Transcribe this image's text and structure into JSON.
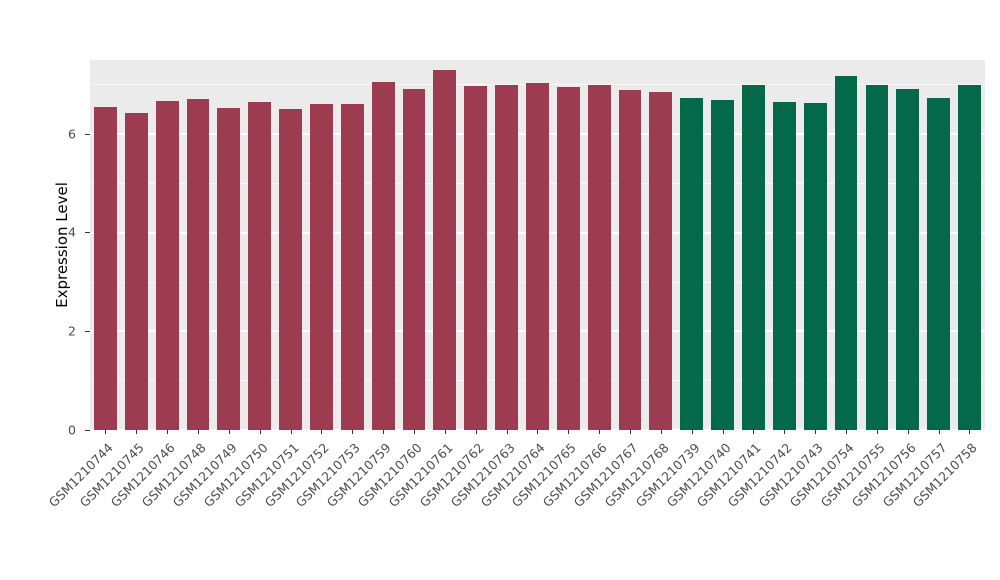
{
  "figure": {
    "background": "#FFFFFF"
  },
  "chart_data": {
    "type": "bar",
    "title": "",
    "xlabel": "",
    "ylabel": "Expression Level",
    "ylim": [
      0,
      7.5
    ],
    "yticks": [
      0,
      2,
      4,
      6
    ],
    "minor_gridlines": [
      1,
      3,
      5,
      7
    ],
    "grid": "on",
    "legend": "none",
    "panel_background": "#EBEBEB",
    "gridline_color": "#FFFFFF",
    "group_colors": {
      "maroon": "#9D3C50",
      "green": "#04694B"
    },
    "categories": [
      "GSM1210744",
      "GSM1210745",
      "GSM1210746",
      "GSM1210748",
      "GSM1210749",
      "GSM1210750",
      "GSM1210751",
      "GSM1210752",
      "GSM1210753",
      "GSM1210759",
      "GSM1210760",
      "GSM1210761",
      "GSM1210762",
      "GSM1210763",
      "GSM1210764",
      "GSM1210765",
      "GSM1210766",
      "GSM1210767",
      "GSM1210768",
      "GSM1210739",
      "GSM1210740",
      "GSM1210741",
      "GSM1210742",
      "GSM1210743",
      "GSM1210754",
      "GSM1210755",
      "GSM1210756",
      "GSM1210757",
      "GSM1210758"
    ],
    "values": [
      6.55,
      6.42,
      6.67,
      6.7,
      6.52,
      6.65,
      6.5,
      6.6,
      6.6,
      7.05,
      6.92,
      7.3,
      6.97,
      7.0,
      7.03,
      6.95,
      7.0,
      6.9,
      6.85,
      6.72,
      6.68,
      7.0,
      6.65,
      6.62,
      7.18,
      7.0,
      6.92,
      6.73,
      7.0
    ],
    "groups": [
      "maroon",
      "maroon",
      "maroon",
      "maroon",
      "maroon",
      "maroon",
      "maroon",
      "maroon",
      "maroon",
      "maroon",
      "maroon",
      "maroon",
      "maroon",
      "maroon",
      "maroon",
      "maroon",
      "maroon",
      "maroon",
      "maroon",
      "green",
      "green",
      "green",
      "green",
      "green",
      "green",
      "green",
      "green",
      "green",
      "green"
    ]
  }
}
